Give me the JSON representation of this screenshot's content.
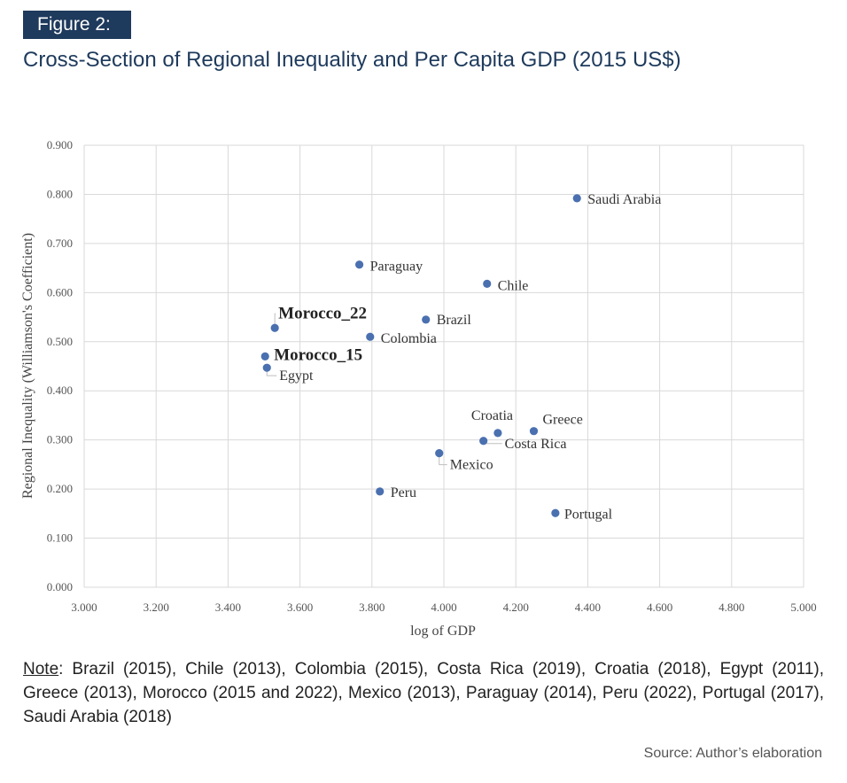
{
  "figure": {
    "badge": "Figure 2:",
    "title": "Cross-Section of Regional Inequality and Per Capita GDP (2015 US$)"
  },
  "chart_data": {
    "type": "scatter",
    "xlabel": "log of GDP",
    "ylabel": "Regional Inequality (Williamson's Coefficient)",
    "xlim": [
      3.0,
      5.0
    ],
    "ylim": [
      0.0,
      0.9
    ],
    "grid": true,
    "x_ticks": [
      "3.000",
      "3.200",
      "3.400",
      "3.600",
      "3.800",
      "4.000",
      "4.200",
      "4.400",
      "4.600",
      "4.800",
      "5.000"
    ],
    "y_ticks": [
      "0.000",
      "0.100",
      "0.200",
      "0.300",
      "0.400",
      "0.500",
      "0.600",
      "0.700",
      "0.800",
      "0.900"
    ],
    "marker_color": "#4a70b0",
    "points": [
      {
        "label": "Saudi Arabia",
        "x": 4.37,
        "y": 0.792
      },
      {
        "label": "Paraguay",
        "x": 3.765,
        "y": 0.657
      },
      {
        "label": "Chile",
        "x": 4.12,
        "y": 0.618
      },
      {
        "label": "Brazil",
        "x": 3.95,
        "y": 0.545
      },
      {
        "label": "Morocco_22",
        "x": 3.53,
        "y": 0.528
      },
      {
        "label": "Colombia",
        "x": 3.795,
        "y": 0.51
      },
      {
        "label": "Morocco_15",
        "x": 3.503,
        "y": 0.47
      },
      {
        "label": "Egypt",
        "x": 3.508,
        "y": 0.447
      },
      {
        "label": "Croatia",
        "x": 4.15,
        "y": 0.314
      },
      {
        "label": "Greece",
        "x": 4.25,
        "y": 0.318
      },
      {
        "label": "Costa Rica",
        "x": 4.11,
        "y": 0.298
      },
      {
        "label": "Mexico",
        "x": 3.987,
        "y": 0.273
      },
      {
        "label": "Peru",
        "x": 3.822,
        "y": 0.195
      },
      {
        "label": "Portugal",
        "x": 4.31,
        "y": 0.151
      }
    ]
  },
  "note": {
    "label": "Note",
    "text": ": Brazil (2015), Chile (2013), Colombia (2015), Costa Rica (2019), Croatia (2018), Egypt (2011), Greece (2013), Morocco (2015 and 2022), Mexico (2013), Paraguay (2014), Peru (2022), Portugal (2017), Saudi Arabia (2018)"
  },
  "source": "Source: Author’s elaboration"
}
